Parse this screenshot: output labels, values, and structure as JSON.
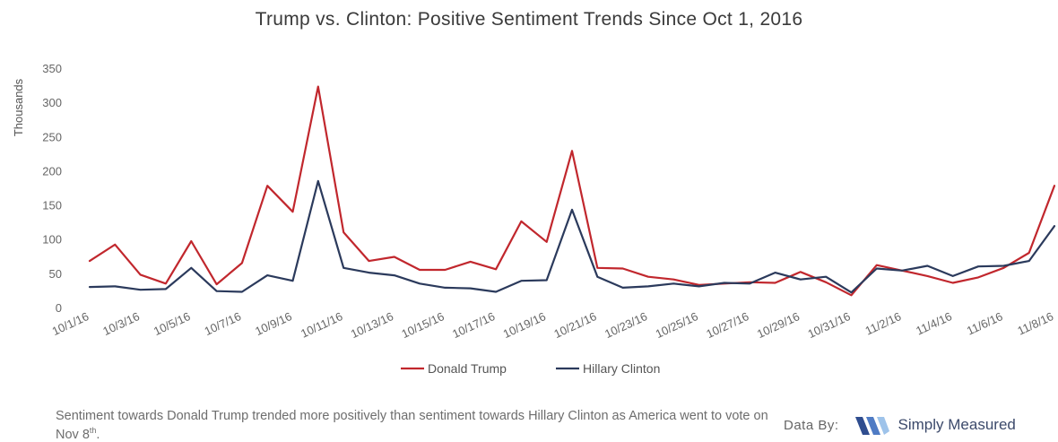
{
  "footer": {
    "note_part1": "Sentiment towards Donald Trump trended more positively than sentiment towards Hillary Clinton as America went to vote on Nov 8",
    "note_sup": "th",
    "note_end": ".",
    "credit_label": "Data By:",
    "brand_name": "Simply Measured"
  },
  "chart_data": {
    "type": "line",
    "title": "Trump vs. Clinton: Positive Sentiment Trends Since Oct 1, 2016",
    "ylabel": "Thousands",
    "xlabel": "",
    "ylim": [
      0,
      350
    ],
    "yticks": [
      0,
      50,
      100,
      150,
      200,
      250,
      300,
      350
    ],
    "grid": false,
    "legend": "bottom-center",
    "x": [
      "10/1/16",
      "10/2/16",
      "10/3/16",
      "10/4/16",
      "10/5/16",
      "10/6/16",
      "10/7/16",
      "10/8/16",
      "10/9/16",
      "10/10/16",
      "10/11/16",
      "10/12/16",
      "10/13/16",
      "10/14/16",
      "10/15/16",
      "10/16/16",
      "10/17/16",
      "10/18/16",
      "10/19/16",
      "10/20/16",
      "10/21/16",
      "10/22/16",
      "10/23/16",
      "10/24/16",
      "10/25/16",
      "10/26/16",
      "10/27/16",
      "10/28/16",
      "10/29/16",
      "10/30/16",
      "10/31/16",
      "11/1/16",
      "11/2/16",
      "11/3/16",
      "11/4/16",
      "11/5/16",
      "11/6/16",
      "11/7/16",
      "11/8/16"
    ],
    "xtick_labels": [
      "10/1/16",
      "10/3/16",
      "10/5/16",
      "10/7/16",
      "10/9/16",
      "10/11/16",
      "10/13/16",
      "10/15/16",
      "10/17/16",
      "10/19/16",
      "10/21/16",
      "10/23/16",
      "10/25/16",
      "10/27/16",
      "10/29/16",
      "10/31/16",
      "11/2/16",
      "11/4/16",
      "11/6/16",
      "11/8/16"
    ],
    "series": [
      {
        "name": "Donald Trump",
        "color": "#c1272d",
        "values": [
          68,
          92,
          48,
          35,
          97,
          34,
          65,
          178,
          140,
          323,
          110,
          68,
          74,
          55,
          55,
          67,
          56,
          126,
          96,
          229,
          58,
          57,
          45,
          41,
          33,
          35,
          37,
          36,
          52,
          37,
          18,
          62,
          54,
          46,
          36,
          44,
          58,
          80,
          178
        ]
      },
      {
        "name": "Hillary Clinton",
        "color": "#2b3a5c",
        "values": [
          30,
          31,
          26,
          27,
          58,
          24,
          23,
          47,
          39,
          185,
          58,
          51,
          47,
          35,
          29,
          28,
          23,
          39,
          40,
          143,
          45,
          29,
          31,
          35,
          31,
          36,
          35,
          51,
          41,
          45,
          22,
          57,
          54,
          61,
          46,
          60,
          61,
          68,
          119
        ]
      }
    ]
  }
}
